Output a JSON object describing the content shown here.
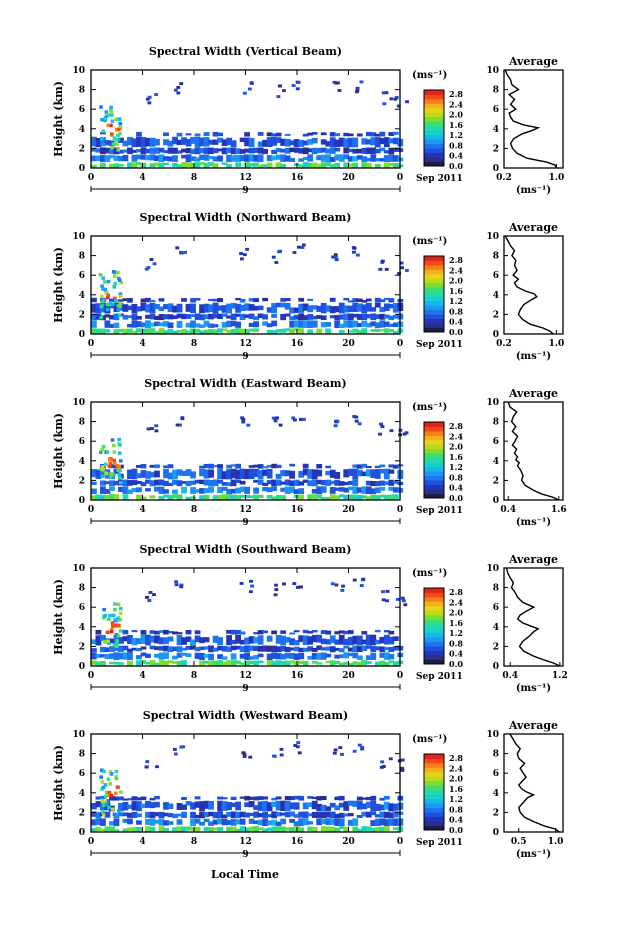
{
  "figure": {
    "xlabel": "Local Time",
    "date_label": "Sep 2011",
    "day_marker": "9"
  },
  "colorbar": {
    "unit": "(ms⁻¹)",
    "ticks": [
      "2.8",
      "2.4",
      "2.0",
      "1.6",
      "1.2",
      "0.8",
      "0.4",
      "0.0"
    ],
    "colors": [
      "#1a1c4a",
      "#2b2f8a",
      "#2336b8",
      "#1f51dd",
      "#1d74ee",
      "#1d98f2",
      "#17b8ea",
      "#18cfd0",
      "#25d8a6",
      "#3fdc6d",
      "#7bdc36",
      "#b9db1c",
      "#e6d41a",
      "#f5b01b",
      "#f58019",
      "#ef4a18",
      "#e1231a"
    ]
  },
  "chart_data": [
    {
      "type": "heatmap",
      "title": "Spectral Width (Vertical Beam)",
      "ylabel": "Height (km)",
      "xlim": [
        0,
        24
      ],
      "ylim": [
        0,
        10
      ],
      "xticks": [
        "0",
        "4",
        "8",
        "12",
        "16",
        "20",
        "0"
      ],
      "yticks": [
        "0",
        "2",
        "4",
        "6",
        "8",
        "10"
      ],
      "profile": {
        "title": "Average",
        "xlabel": "(ms⁻¹)",
        "xlim": [
          0.2,
          1.1
        ],
        "xticks": [
          "0.2",
          "1.0"
        ],
        "heights": [
          0,
          0.3,
          0.6,
          1,
          1.5,
          2,
          2.5,
          3,
          3.5,
          3.8,
          4.1,
          4.4,
          4.8,
          5.2,
          5.6,
          6,
          6.5,
          7,
          7.5,
          8,
          8.5,
          9,
          9.5,
          10
        ],
        "values": [
          1.0,
          0.98,
          0.85,
          0.55,
          0.4,
          0.33,
          0.3,
          0.35,
          0.48,
          0.62,
          0.72,
          0.5,
          0.34,
          0.3,
          0.28,
          0.38,
          0.3,
          0.36,
          0.28,
          0.42,
          0.32,
          0.3,
          0.25,
          0.22
        ]
      }
    },
    {
      "type": "heatmap",
      "title": "Spectral Width (Northward Beam)",
      "ylabel": "Height (km)",
      "xlim": [
        0,
        24
      ],
      "ylim": [
        0,
        10
      ],
      "xticks": [
        "0",
        "4",
        "8",
        "12",
        "16",
        "20",
        "0"
      ],
      "yticks": [
        "0",
        "2",
        "4",
        "6",
        "8",
        "10"
      ],
      "profile": {
        "title": "Average",
        "xlabel": "(ms⁻¹)",
        "xlim": [
          0.2,
          1.1
        ],
        "xticks": [
          "0.2",
          "1.0"
        ],
        "heights": [
          0,
          0.3,
          0.6,
          1,
          1.5,
          2,
          2.5,
          3,
          3.5,
          3.8,
          4.1,
          4.4,
          4.8,
          5.2,
          5.6,
          6,
          6.5,
          7,
          7.5,
          8,
          8.5,
          9,
          9.5,
          10
        ],
        "values": [
          0.95,
          0.9,
          0.8,
          0.6,
          0.48,
          0.42,
          0.45,
          0.5,
          0.62,
          0.7,
          0.66,
          0.52,
          0.4,
          0.36,
          0.42,
          0.34,
          0.4,
          0.36,
          0.38,
          0.32,
          0.36,
          0.3,
          0.26,
          0.22
        ]
      }
    },
    {
      "type": "heatmap",
      "title": "Spectral Width (Eastward Beam)",
      "ylabel": "Height (km)",
      "xlim": [
        0,
        24
      ],
      "ylim": [
        0,
        10
      ],
      "xticks": [
        "0",
        "4",
        "8",
        "12",
        "16",
        "20",
        "0"
      ],
      "yticks": [
        "0",
        "2",
        "4",
        "6",
        "8",
        "10"
      ],
      "profile": {
        "title": "Average",
        "xlabel": "(ms⁻¹)",
        "xlim": [
          0.3,
          1.7
        ],
        "xticks": [
          "0.4",
          "1.6"
        ],
        "heights": [
          0,
          0.3,
          0.6,
          1,
          1.5,
          2,
          2.5,
          3,
          3.5,
          3.8,
          4.1,
          4.4,
          4.8,
          5.2,
          5.6,
          6,
          6.5,
          7,
          7.5,
          8,
          8.5,
          9,
          9.5,
          10
        ],
        "values": [
          1.6,
          1.45,
          1.2,
          1.0,
          0.8,
          0.72,
          0.75,
          0.7,
          0.62,
          0.66,
          0.58,
          0.62,
          0.55,
          0.6,
          0.5,
          0.56,
          0.62,
          0.5,
          0.58,
          0.48,
          0.52,
          0.6,
          0.44,
          0.4
        ]
      }
    },
    {
      "type": "heatmap",
      "title": "Spectral Width (Southward Beam)",
      "ylabel": "Height (km)",
      "xlim": [
        0,
        24
      ],
      "ylim": [
        0,
        10
      ],
      "xticks": [
        "0",
        "4",
        "8",
        "12",
        "16",
        "20",
        "0"
      ],
      "yticks": [
        "0",
        "2",
        "4",
        "6",
        "8",
        "10"
      ],
      "profile": {
        "title": "Average",
        "xlabel": "(ms⁻¹)",
        "xlim": [
          0.3,
          1.25
        ],
        "xticks": [
          "0.4",
          "1.2"
        ],
        "heights": [
          0,
          0.3,
          0.6,
          1,
          1.5,
          2,
          2.5,
          3,
          3.5,
          3.8,
          4.1,
          4.4,
          4.8,
          5.2,
          5.6,
          6,
          6.5,
          7,
          7.5,
          8,
          8.5,
          9,
          9.5,
          10
        ],
        "values": [
          1.2,
          1.1,
          0.95,
          0.78,
          0.62,
          0.55,
          0.6,
          0.7,
          0.78,
          0.85,
          0.72,
          0.6,
          0.52,
          0.56,
          0.66,
          0.78,
          0.6,
          0.52,
          0.48,
          0.42,
          0.45,
          0.4,
          0.36,
          0.34
        ]
      }
    },
    {
      "type": "heatmap",
      "title": "Spectral Width (Westward Beam)",
      "ylabel": "Height (km)",
      "xlim": [
        0,
        24
      ],
      "ylim": [
        0,
        10
      ],
      "xticks": [
        "0",
        "4",
        "8",
        "12",
        "16",
        "20",
        "0"
      ],
      "yticks": [
        "0",
        "2",
        "4",
        "6",
        "8",
        "10"
      ],
      "profile": {
        "title": "Average",
        "xlabel": "(ms⁻¹)",
        "xlim": [
          0.3,
          1.1
        ],
        "xticks": [
          "0.5",
          "1.0"
        ],
        "heights": [
          0,
          0.3,
          0.6,
          1,
          1.5,
          2,
          2.5,
          3,
          3.5,
          3.8,
          4.1,
          4.4,
          4.8,
          5.2,
          5.6,
          6,
          6.5,
          7,
          7.5,
          8,
          8.5,
          9,
          9.5,
          10
        ],
        "values": [
          1.05,
          1.0,
          0.85,
          0.72,
          0.58,
          0.52,
          0.5,
          0.56,
          0.62,
          0.7,
          0.6,
          0.54,
          0.5,
          0.55,
          0.6,
          0.56,
          0.52,
          0.58,
          0.5,
          0.48,
          0.52,
          0.46,
          0.42,
          0.38
        ]
      }
    }
  ]
}
